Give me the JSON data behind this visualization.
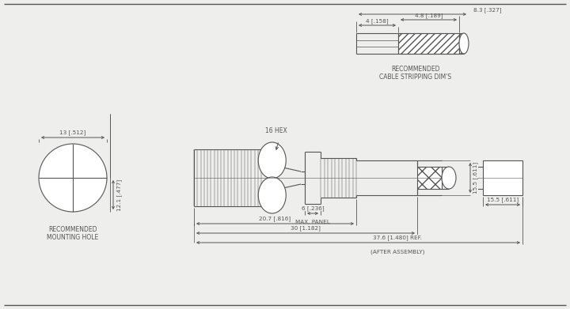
{
  "bg_color": "#eeeeec",
  "line_color": "#555555",
  "font_size_label": 5.5,
  "font_size_dim": 5.2,
  "dims": {
    "cable_4": "4 [.158]",
    "cable_4_8": "4.8 [.189]",
    "cable_8_3": "8.3 [.327]",
    "hole_13": "13 [.512]",
    "hole_12_1": "12.1 [.477]",
    "panel_6": "6 [.236]",
    "panel_label": "MAX. PANEL",
    "len_20_7": "20.7 [.816]",
    "len_30": "30 [1.182]",
    "len_37_6": "37.6 [1.480] REF.",
    "after_assembly": "(AFTER ASSEMBLY)",
    "hex_16": "16 HEX",
    "height_15_5_v": "15.5 [.611]",
    "height_15_5_h": "15.5 [.611]",
    "rec_cable": "RECOMMENDED\nCABLE STRIPPING DIM'S",
    "rec_mount": "RECOMMENDED\nMOUNTING HOLE"
  }
}
